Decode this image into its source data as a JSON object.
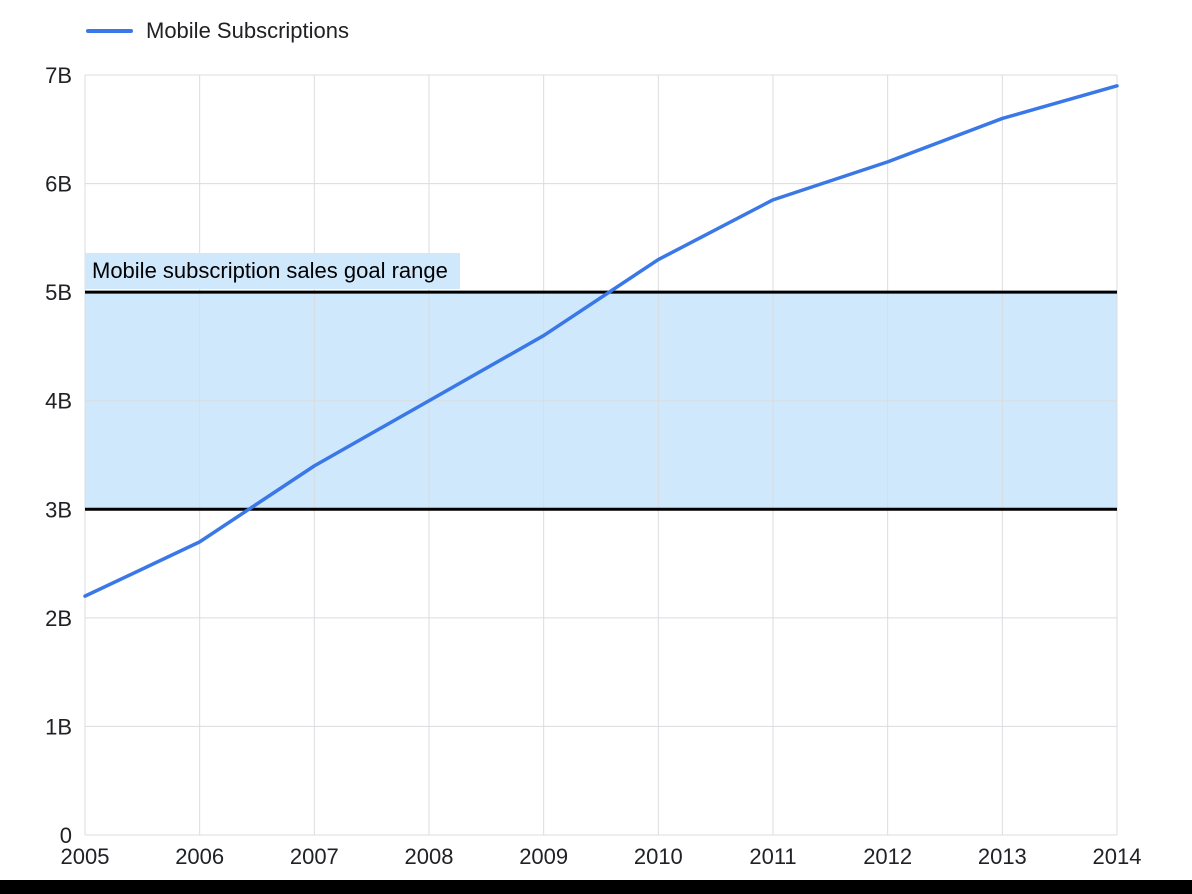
{
  "legend": {
    "position": "top-left",
    "items": [
      {
        "label": "Mobile Subscriptions",
        "color": "#3b78e7"
      }
    ]
  },
  "chart_data": {
    "type": "line",
    "title": "",
    "x": [
      "2005",
      "2006",
      "2007",
      "2008",
      "2009",
      "2010",
      "2011",
      "2012",
      "2013",
      "2014"
    ],
    "series": [
      {
        "name": "Mobile Subscriptions",
        "color": "#3b78e7",
        "values": [
          2.2,
          2.7,
          3.4,
          4.0,
          4.6,
          5.3,
          5.85,
          6.2,
          6.6,
          6.9
        ]
      }
    ],
    "ylim": [
      0,
      7
    ],
    "y_ticks": [
      {
        "value": 0,
        "label": "0"
      },
      {
        "value": 1,
        "label": "1B"
      },
      {
        "value": 2,
        "label": "2B"
      },
      {
        "value": 3,
        "label": "3B"
      },
      {
        "value": 4,
        "label": "4B"
      },
      {
        "value": 5,
        "label": "5B"
      },
      {
        "value": 6,
        "label": "6B"
      },
      {
        "value": 7,
        "label": "7B"
      }
    ],
    "grid": true,
    "band": {
      "from": 3,
      "to": 5,
      "label": "Mobile subscription sales goal range",
      "fill": "#cfe8fc",
      "border_color": "#000000"
    },
    "legend_position": "top-left"
  },
  "colors": {
    "gridline": "#dadce0",
    "axis_text": "#202124",
    "bottom_bar": "#000000"
  }
}
